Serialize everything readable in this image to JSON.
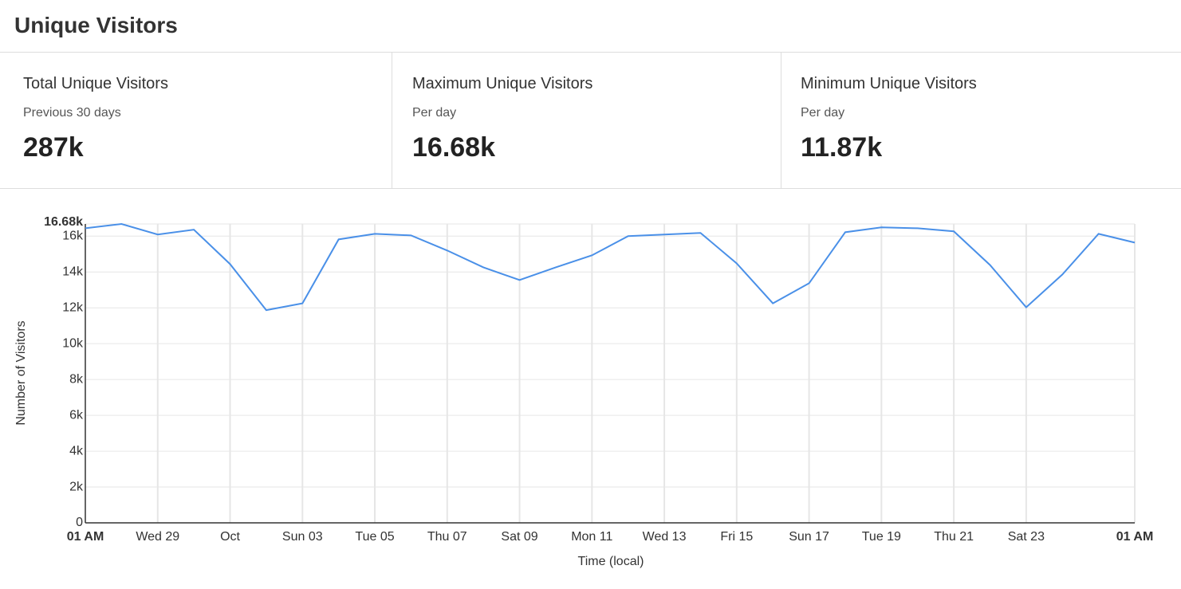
{
  "header": {
    "title": "Unique Visitors"
  },
  "stats": [
    {
      "title": "Total Unique Visitors",
      "subtitle": "Previous 30 days",
      "value": "287k"
    },
    {
      "title": "Maximum Unique Visitors",
      "subtitle": "Per day",
      "value": "16.68k"
    },
    {
      "title": "Minimum Unique Visitors",
      "subtitle": "Per day",
      "value": "11.87k"
    }
  ],
  "chart_data": {
    "type": "line",
    "y_label": "Number of Visitors",
    "x_label": "Time (local)",
    "categories": [
      "01 AM",
      null,
      "Wed 29",
      null,
      "Oct",
      null,
      "Sun 03",
      null,
      "Tue 05",
      null,
      "Thu 07",
      null,
      "Sat 09",
      null,
      "Mon 11",
      null,
      "Wed 13",
      null,
      "Fri 15",
      null,
      "Sun 17",
      null,
      "Tue 19",
      null,
      "Thu 21",
      null,
      "Sat 23",
      null,
      null,
      "01 AM"
    ],
    "values": [
      16440,
      16680,
      16090,
      16360,
      14440,
      11870,
      12250,
      15820,
      16130,
      16040,
      15200,
      14260,
      13550,
      14260,
      14930,
      16000,
      16090,
      16180,
      14480,
      12250,
      13370,
      16220,
      16490,
      16440,
      16270,
      14390,
      12030,
      13860,
      16130,
      15640
    ],
    "color": "#4a90e8",
    "ylim": [
      0,
      16680
    ],
    "yticks": [
      0,
      {
        "value": 2000,
        "label": "2k"
      },
      {
        "value": 4000,
        "label": "4k"
      },
      {
        "value": 6000,
        "label": "6k"
      },
      {
        "value": 8000,
        "label": "8k"
      },
      {
        "value": 10000,
        "label": "10k"
      },
      {
        "value": 12000,
        "label": "12k"
      },
      {
        "value": 14000,
        "label": "14k"
      },
      {
        "value": 16000,
        "label": "16k"
      },
      {
        "value": 16680,
        "label": "16.68k"
      }
    ],
    "grid": true
  }
}
